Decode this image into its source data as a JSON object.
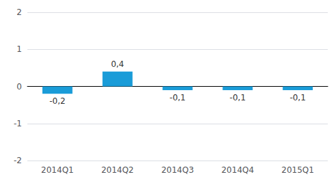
{
  "chart_data": {
    "type": "bar",
    "categories": [
      "2014Q1",
      "2014Q2",
      "2014Q3",
      "2014Q4",
      "2015Q1"
    ],
    "values": [
      -0.2,
      0.4,
      -0.1,
      -0.1,
      -0.1
    ],
    "value_labels": [
      "-0,2",
      "0,4",
      "-0,1",
      "-0,1",
      "-0,1"
    ],
    "data_labels": true,
    "color": "#1a9cd8",
    "ylim": [
      -2,
      2
    ],
    "yticks": [
      -2,
      -1,
      0,
      1,
      2
    ],
    "grid": true
  }
}
